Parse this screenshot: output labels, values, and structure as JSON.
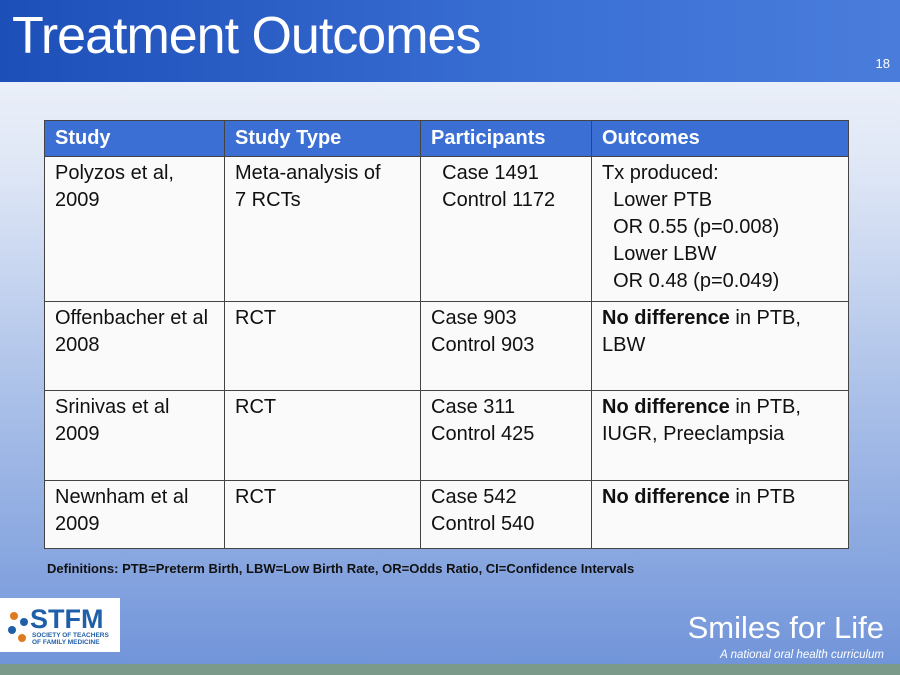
{
  "header": {
    "title": "Treatment Outcomes",
    "slide_number": "18"
  },
  "table": {
    "columns": [
      "Study",
      "Study Type",
      "Participants",
      "Outcomes"
    ],
    "rows": [
      [
        [
          "Polyzos et al,",
          "2009"
        ],
        [
          "Meta-analysis of",
          "7 RCTs"
        ],
        [
          "  Case 1491",
          "  Control 1172"
        ],
        [
          "Tx produced:",
          "  Lower PTB",
          "  OR 0.55 (p=0.008)",
          "  Lower LBW",
          "  OR 0.48 (p=0.049)"
        ]
      ],
      [
        [
          "Offenbacher et al",
          "2008"
        ],
        [
          "RCT"
        ],
        [
          "Case 903",
          "Control 903"
        ],
        [
          {
            "bold": "No difference",
            "text": " in PTB, LBW"
          }
        ]
      ],
      [
        [
          "Srinivas et al",
          "2009"
        ],
        [
          "RCT"
        ],
        [
          "Case 311",
          "Control 425"
        ],
        [
          {
            "bold": "No difference",
            "text": " in PTB, IUGR, Preeclampsia"
          }
        ]
      ],
      [
        [
          "Newnham et al",
          "2009"
        ],
        [
          "RCT"
        ],
        [
          "Case 542",
          "Control 540"
        ],
        [
          {
            "bold": "No difference",
            "text": " in PTB"
          }
        ]
      ]
    ]
  },
  "footnote": "Definitions: PTB=Preterm Birth, LBW=Low Birth Rate, OR=Odds Ratio, CI=Confidence Intervals",
  "footer": {
    "logo_name": "STFM",
    "logo_subtitle": "SOCIETY OF TEACHERS OF FAMILY MEDICINE",
    "brand": "Smiles for Life",
    "tagline": "A national oral health curriculum"
  }
}
